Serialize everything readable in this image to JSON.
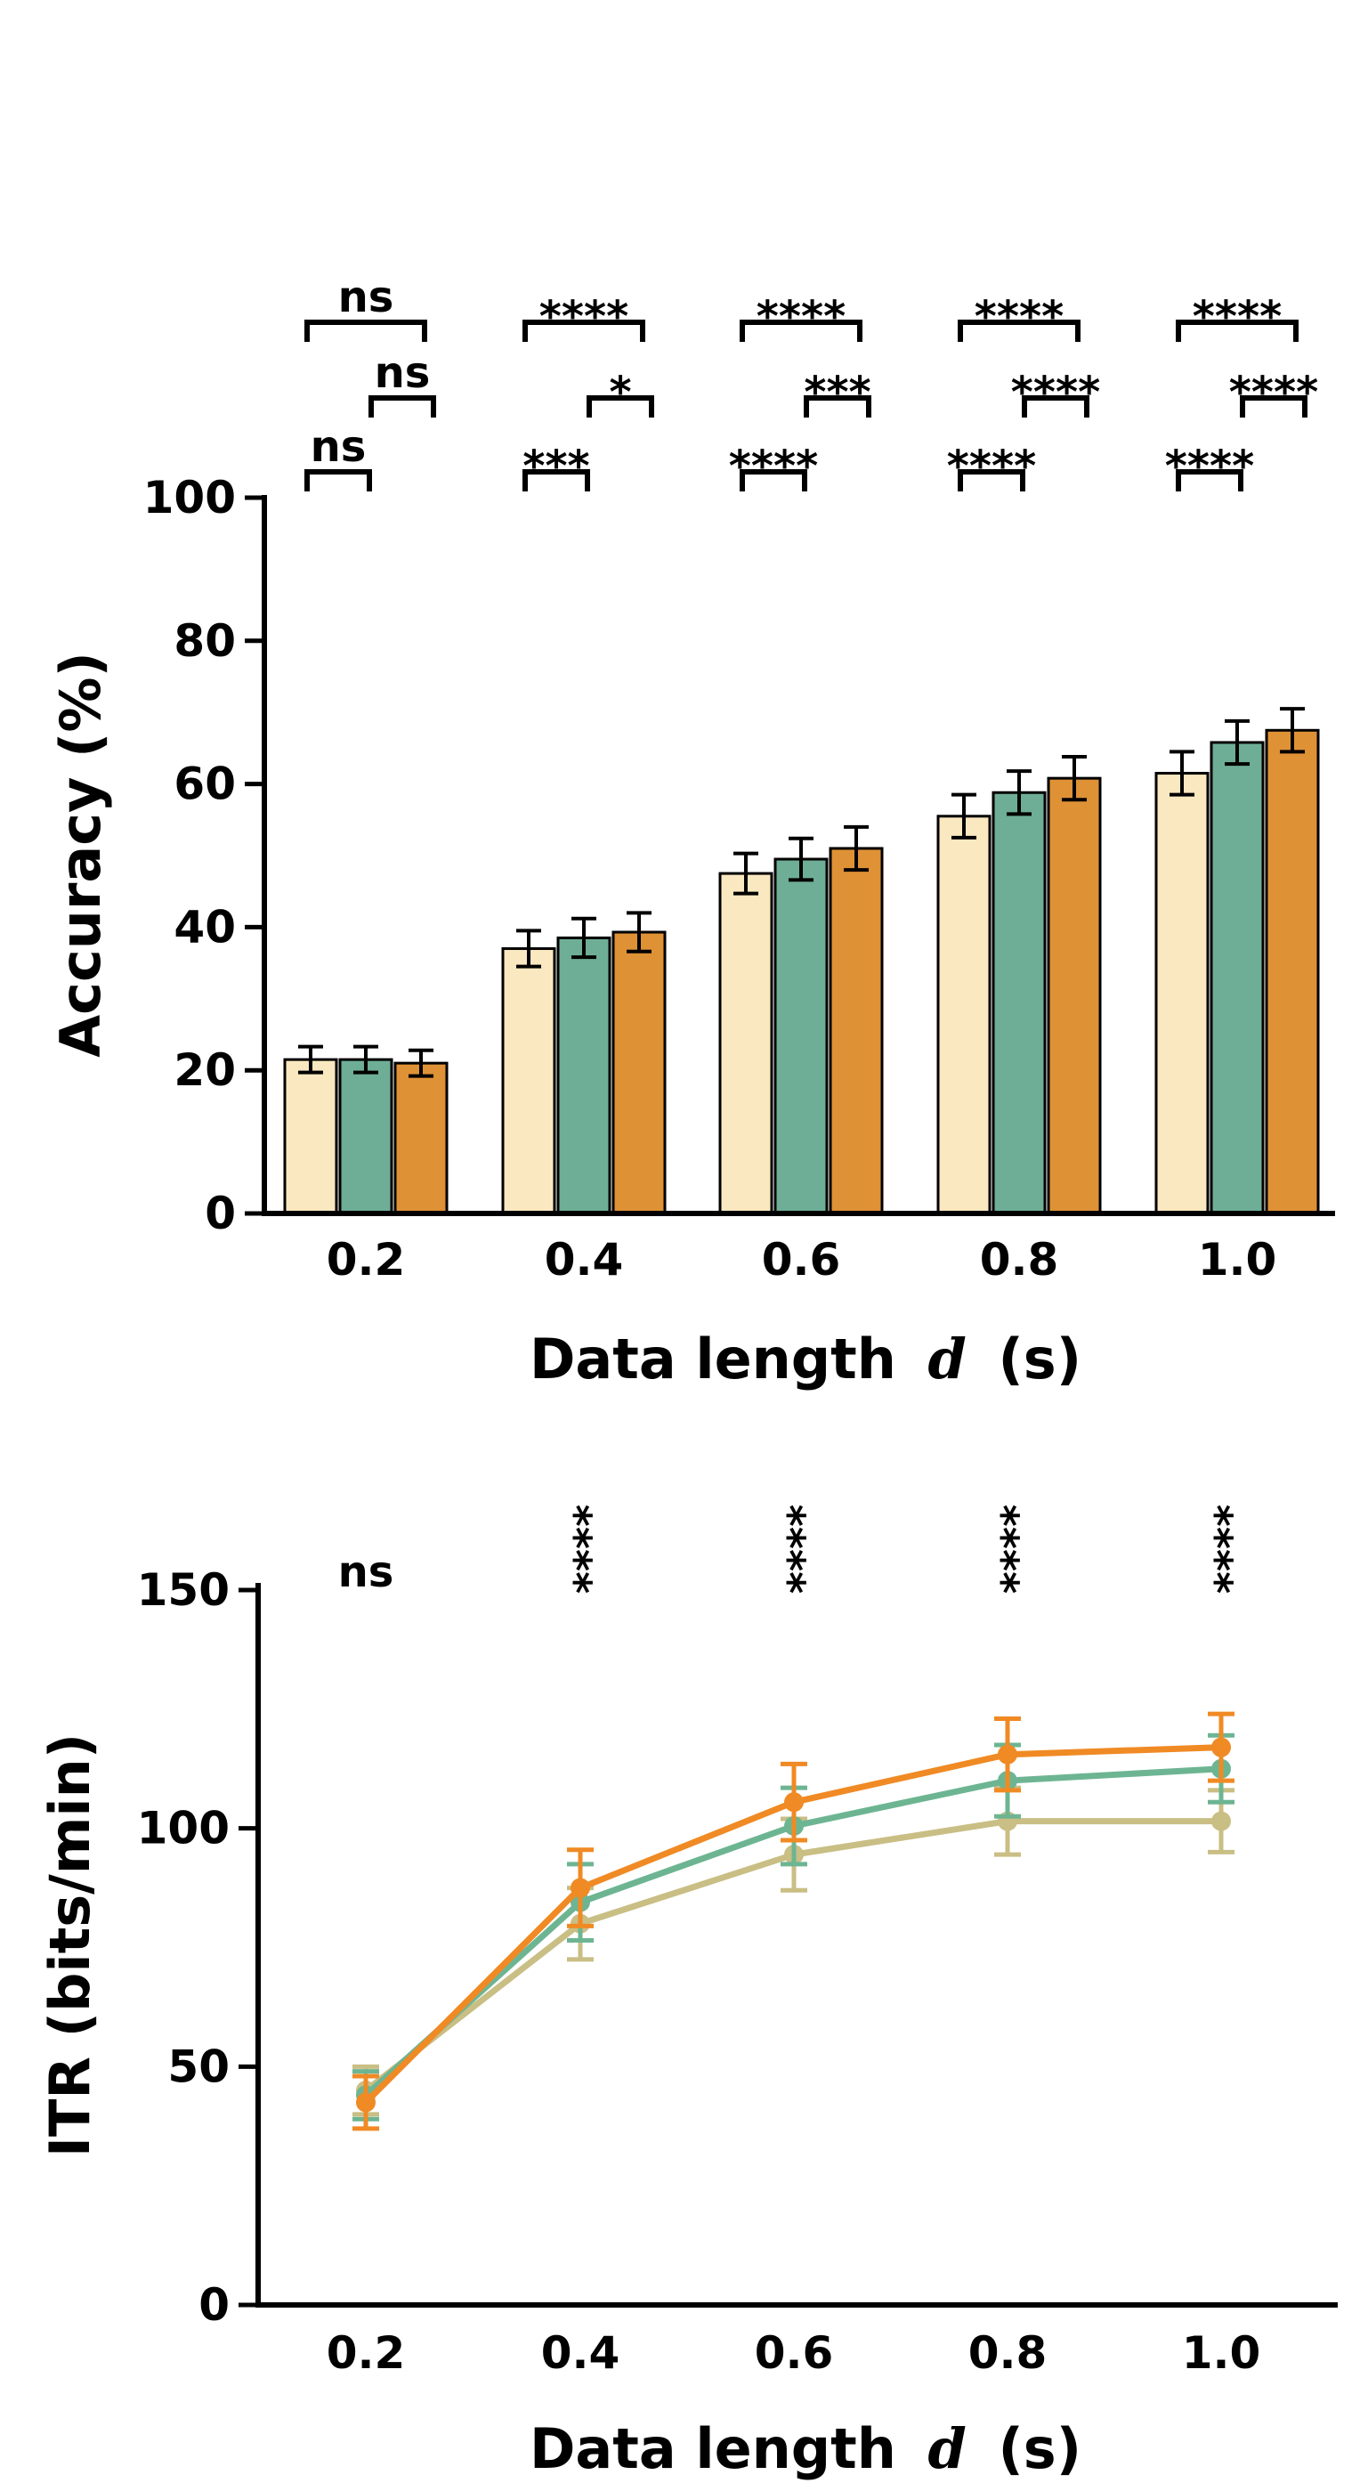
{
  "chart_data": [
    {
      "type": "bar",
      "xlabel": "Data length",
      "xlabel_var": "d",
      "xlabel_unit": "(s)",
      "ylabel": "Accuracy (%)",
      "ylim": [
        0,
        100
      ],
      "yticks": [
        "0",
        "20",
        "40",
        "60",
        "80",
        "100"
      ],
      "categories": [
        "0.2",
        "0.4",
        "0.6",
        "0.8",
        "1.0"
      ],
      "series": [
        {
          "color": "#FAE8C0",
          "values": [
            21.5,
            37.0,
            47.5,
            55.5,
            61.5
          ],
          "errors": [
            1.8,
            2.5,
            2.8,
            3.0,
            3.0
          ]
        },
        {
          "color": "#6FAE96",
          "values": [
            21.5,
            38.5,
            49.5,
            58.8,
            65.8
          ],
          "errors": [
            1.8,
            2.7,
            2.9,
            3.0,
            3.0
          ]
        },
        {
          "color": "#DF9136",
          "values": [
            21.0,
            39.3,
            51.0,
            60.8,
            67.5
          ],
          "errors": [
            1.8,
            2.7,
            3.0,
            3.0,
            3.0
          ]
        }
      ],
      "significance": [
        {
          "category": "0.2",
          "top": "ns",
          "mid": "ns",
          "low": "ns"
        },
        {
          "category": "0.4",
          "top": "****",
          "mid": "*",
          "low": "***"
        },
        {
          "category": "0.6",
          "top": "****",
          "mid": "***",
          "low": "****"
        },
        {
          "category": "0.8",
          "top": "****",
          "mid": "****",
          "low": "****"
        },
        {
          "category": "1.0",
          "top": "****",
          "mid": "****",
          "low": "****"
        }
      ]
    },
    {
      "type": "line",
      "xlabel": "Data length",
      "xlabel_var": "d",
      "xlabel_unit": "(s)",
      "ylabel": "ITR (bits/min)",
      "ylim": [
        0,
        150
      ],
      "yticks": [
        "0",
        "50",
        "100",
        "150"
      ],
      "categories": [
        "0.2",
        "0.4",
        "0.6",
        "0.8",
        "1.0"
      ],
      "series": [
        {
          "color": "#F08A24",
          "values": [
            42.5,
            87.5,
            105.5,
            115.5,
            117.0
          ],
          "errors": [
            5.5,
            8.0,
            8.0,
            7.5,
            7.0
          ]
        },
        {
          "color": "#6DB592",
          "values": [
            44.0,
            84.5,
            100.5,
            110.0,
            112.5
          ],
          "errors": [
            5.0,
            8.0,
            8.0,
            7.5,
            7.0
          ]
        },
        {
          "color": "#C9BE84",
          "values": [
            45.0,
            80.0,
            94.5,
            101.5,
            101.5
          ],
          "errors": [
            5.0,
            7.5,
            7.5,
            7.0,
            6.5
          ]
        }
      ],
      "significance": [
        "ns",
        "****",
        "****",
        "****",
        "****"
      ]
    }
  ]
}
